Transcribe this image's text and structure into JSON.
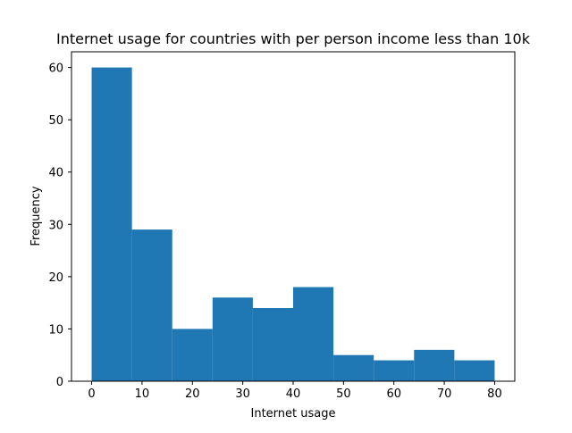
{
  "chart_data": {
    "type": "histogram",
    "title": "Internet usage for countries with per person income less than 10k",
    "xlabel": "Internet usage",
    "ylabel": "Frequency",
    "bin_edges": [
      0,
      8,
      16,
      24,
      32,
      40,
      48,
      56,
      64,
      72,
      80
    ],
    "values": [
      60,
      29,
      10,
      16,
      14,
      18,
      5,
      4,
      6,
      4
    ],
    "xlim": [
      -4,
      84
    ],
    "ylim": [
      0,
      63
    ],
    "xticks": [
      0,
      10,
      20,
      30,
      40,
      50,
      60,
      70,
      80
    ],
    "yticks": [
      0,
      10,
      20,
      30,
      40,
      50,
      60
    ],
    "bar_color": "#1f77b4",
    "grid": false,
    "legend": false
  }
}
